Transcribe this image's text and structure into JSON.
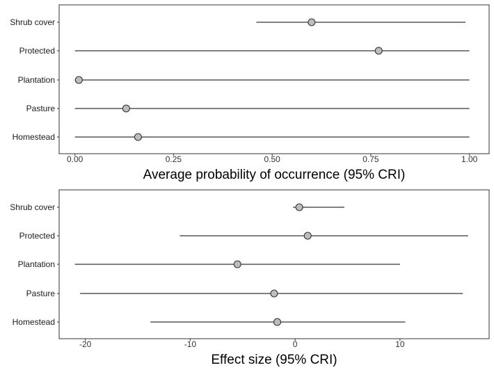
{
  "chart_data": [
    {
      "type": "forest",
      "xlabel": "Average probability of occurrence (95% CRI)",
      "xlim": [
        -0.04,
        1.05
      ],
      "xticks": [
        0,
        0.25,
        0.5,
        0.75,
        1
      ],
      "xtick_labels": [
        "0.00",
        "0.25",
        "0.50",
        "0.75",
        "1.00"
      ],
      "categories": [
        "Shrub cover",
        "Protected",
        "Plantation",
        "Pasture",
        "Homestead"
      ],
      "estimates": [
        0.6,
        0.77,
        0.01,
        0.13,
        0.16
      ],
      "lower": [
        0.46,
        0.0,
        0.0,
        0.0,
        0.0
      ],
      "upper": [
        0.99,
        1.0,
        1.0,
        1.0,
        1.0
      ],
      "grid": false
    },
    {
      "type": "forest",
      "xlabel": "Effect size (95% CRI)",
      "xlim": [
        -22.5,
        18.5
      ],
      "xticks": [
        -20,
        -10,
        0,
        10
      ],
      "xtick_labels": [
        "-20",
        "-10",
        "0",
        "10"
      ],
      "categories": [
        "Shrub cover",
        "Protected",
        "Plantation",
        "Pasture",
        "Homestead"
      ],
      "estimates": [
        0.4,
        1.2,
        -5.5,
        -2.0,
        -1.7
      ],
      "lower": [
        -0.2,
        -11.0,
        -21.0,
        -20.5,
        -13.8
      ],
      "upper": [
        4.7,
        16.5,
        10.0,
        16.0,
        10.5
      ],
      "grid": false
    }
  ],
  "style": {
    "point_fill": "#bdbdbd",
    "point_stroke": "#333333",
    "line_color": "#000000",
    "panel_border": "#333333"
  }
}
